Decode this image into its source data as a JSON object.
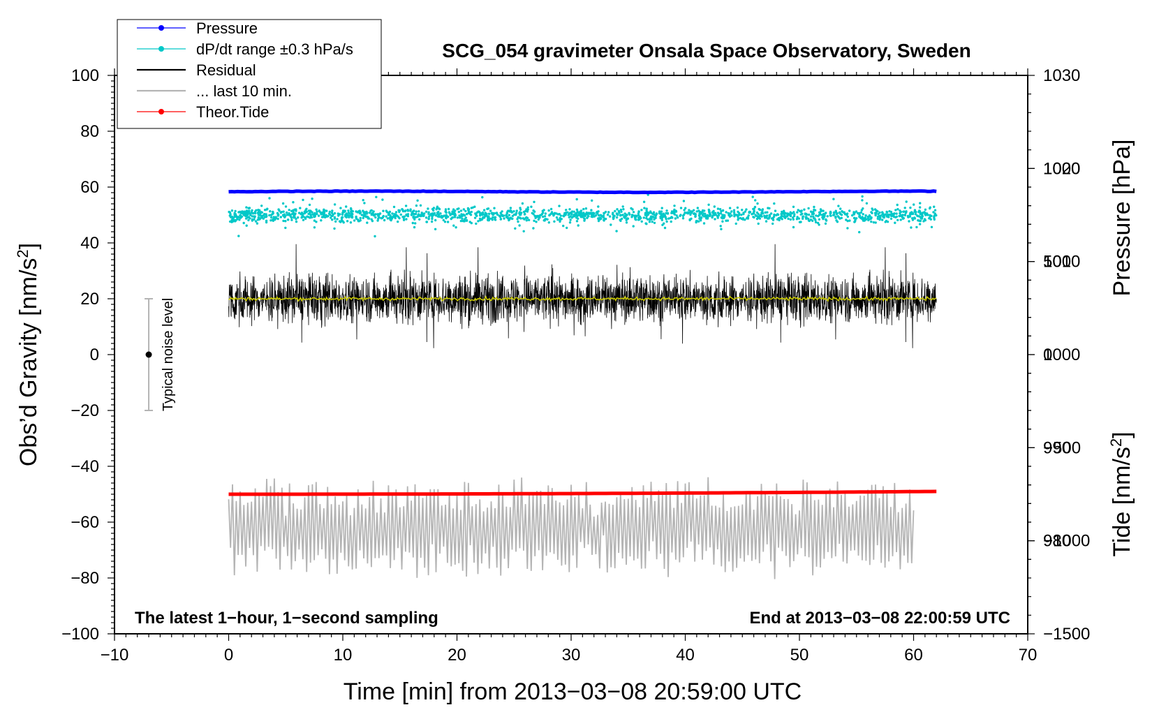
{
  "chart_data": {
    "type": "line",
    "title": "SCG_054 gravimeter Onsala Space Observatory, Sweden",
    "xlabel": "Time [min] from 2013−03−08 20:59:00 UTC",
    "ylabel_left": "Obs’d Gravity [nm/s",
    "ylabel_left_sup": "2",
    "ylabel_left_close": "]",
    "ylabel_right_pressure": "Pressure [hPa]",
    "ylabel_right_tide": "Tide [nm/s",
    "ylabel_right_tide_sup": "2",
    "ylabel_right_tide_close": "]",
    "xlim": [
      -10,
      70
    ],
    "ylim_left": [
      -100,
      100
    ],
    "ylim_pressure": [
      970,
      1030
    ],
    "ylim_tide": [
      -1500,
      1500
    ],
    "x_ticks": [
      "−10",
      "0",
      "10",
      "20",
      "30",
      "40",
      "50",
      "60",
      "70"
    ],
    "y_left_ticks": [
      "100",
      "80",
      "60",
      "40",
      "20",
      "0",
      "−20",
      "−40",
      "−60",
      "−80",
      "−100"
    ],
    "pressure_ticks": [
      "1030",
      "1020",
      "1010",
      "1000",
      "990",
      "980"
    ],
    "tide_ticks": [
      "1000",
      "500",
      "0",
      "−500",
      "−1000",
      "−1500"
    ],
    "annotation_left": "The latest 1−hour, 1−second sampling",
    "annotation_right": "End at 2013−03−08 22:00:59 UTC",
    "noise_label": "Typical noise level",
    "noise_level": {
      "x": -7,
      "center": 0,
      "low": -20,
      "high": 20
    },
    "legend": [
      {
        "label": "Pressure",
        "color": "#0000ff",
        "marker": true
      },
      {
        "label": "dP/dt range ±0.3 hPa/s",
        "color": "#00c8c8",
        "marker": true
      },
      {
        "label": "Residual",
        "color": "#000000",
        "marker": false
      },
      {
        "label": "... last 10 min.",
        "color": "#b4b4b4",
        "marker": false
      },
      {
        "label": "Theor.Tide",
        "color": "#ff0000",
        "marker": true
      }
    ],
    "series": [
      {
        "name": "Pressure",
        "axis": "pressure",
        "x_range": [
          0,
          62
        ],
        "mean": 1017.5,
        "color": "#0000ff"
      },
      {
        "name": "dP/dt range ±0.3 hPa/s",
        "axis": "left",
        "x_range": [
          0,
          62
        ],
        "mean": 50,
        "spread_min": 40,
        "spread_max": 63,
        "color": "#00c8c8"
      },
      {
        "name": "Residual",
        "axis": "left",
        "x_range": [
          0,
          62
        ],
        "mean": 20,
        "min": -5,
        "max": 43,
        "color": "#000000"
      },
      {
        "name": "Residual smoothed",
        "axis": "left",
        "x_range": [
          0,
          62
        ],
        "mean": 20,
        "color": "#c8c800"
      },
      {
        "name": "... last 10 min.",
        "axis": "left",
        "x_range": [
          0,
          60
        ],
        "mean": -62,
        "min": -87,
        "max": -39,
        "color": "#b4b4b4"
      },
      {
        "name": "Theor.Tide",
        "axis": "tide",
        "x_range": [
          0,
          62
        ],
        "start": -750,
        "end": -735,
        "color": "#ff0000"
      }
    ]
  }
}
